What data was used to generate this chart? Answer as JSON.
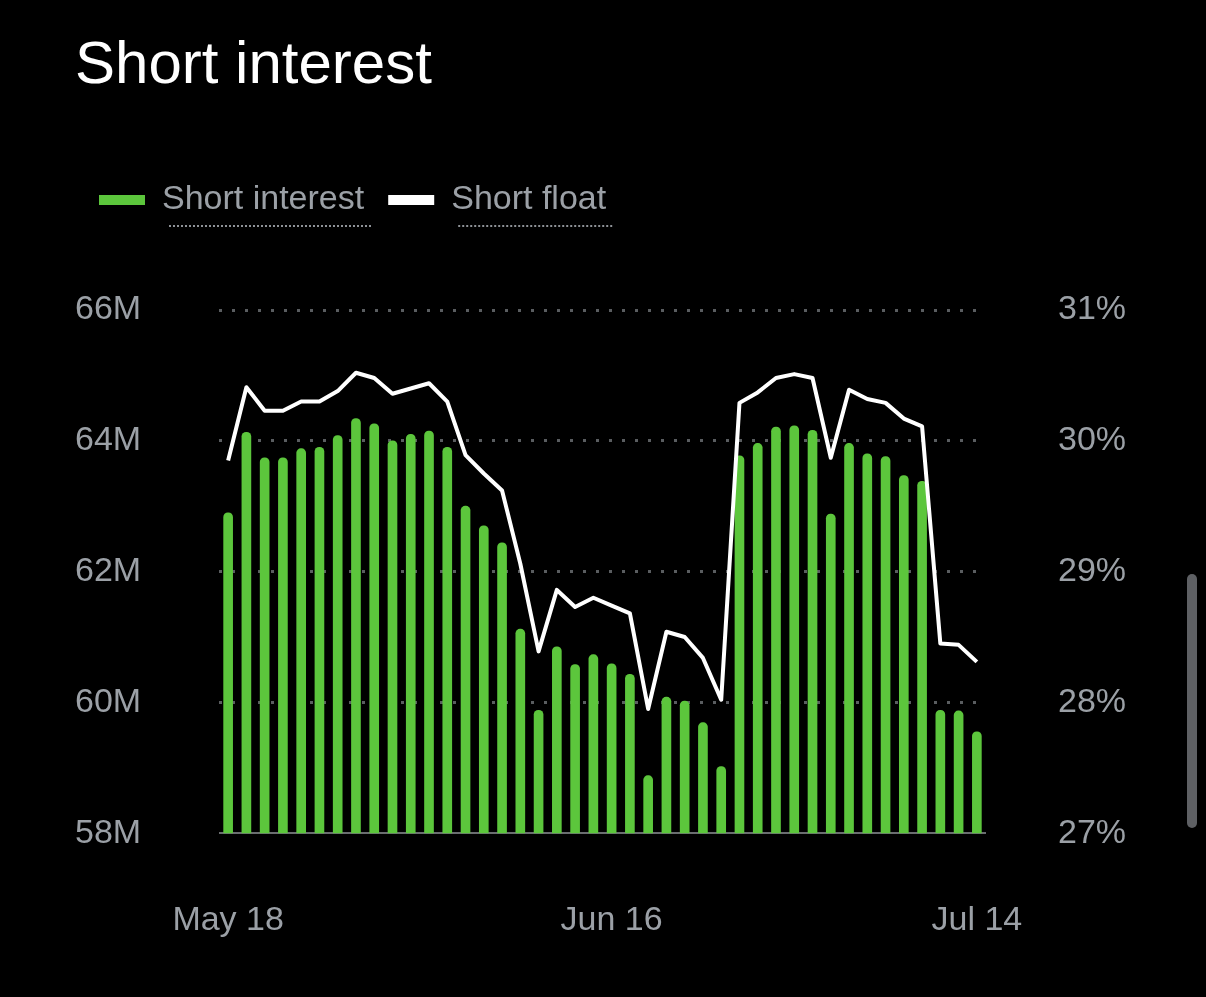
{
  "chart_data": {
    "type": "bar",
    "title": "Short interest",
    "categories": [
      "May 18",
      null,
      null,
      null,
      null,
      null,
      null,
      null,
      null,
      null,
      null,
      null,
      null,
      null,
      null,
      null,
      null,
      null,
      null,
      null,
      null,
      "Jun 16",
      null,
      null,
      null,
      null,
      null,
      null,
      null,
      null,
      null,
      null,
      null,
      null,
      null,
      null,
      null,
      null,
      null,
      null,
      null,
      "Jul 14"
    ],
    "series": [
      {
        "name": "Short interest",
        "type": "bar",
        "color": "#5cc63c",
        "values": [
          62.9,
          64.13,
          63.74,
          63.74,
          63.88,
          63.9,
          64.08,
          64.34,
          64.26,
          64.0,
          64.1,
          64.15,
          63.9,
          63.0,
          62.7,
          62.44,
          61.12,
          59.88,
          60.85,
          60.58,
          60.73,
          60.59,
          60.43,
          58.88,
          60.08,
          60.02,
          59.69,
          59.02,
          63.77,
          63.96,
          64.21,
          64.23,
          64.16,
          62.88,
          63.96,
          63.8,
          63.76,
          63.47,
          63.38,
          59.88,
          59.87,
          59.55
        ]
      },
      {
        "name": "Short float",
        "type": "line",
        "axis": "y2",
        "color": "#ffffff",
        "values": [
          29.85,
          30.41,
          30.23,
          30.23,
          30.3,
          30.3,
          30.38,
          30.52,
          30.48,
          30.36,
          30.4,
          30.44,
          30.3,
          29.89,
          29.75,
          29.62,
          29.06,
          28.39,
          28.86,
          28.73,
          28.8,
          28.74,
          28.68,
          27.95,
          28.54,
          28.5,
          28.34,
          28.02,
          30.29,
          30.37,
          30.48,
          30.51,
          30.48,
          29.87,
          30.39,
          30.32,
          30.29,
          30.17,
          30.11,
          28.45,
          28.44,
          28.31
        ]
      }
    ],
    "ylim": [
      58,
      66
    ],
    "yticks": [
      {
        "value": 58,
        "label": "58M"
      },
      {
        "value": 60,
        "label": "60M"
      },
      {
        "value": 62,
        "label": "62M"
      },
      {
        "value": 64,
        "label": "64M"
      },
      {
        "value": 66,
        "label": "66M"
      }
    ],
    "y2lim": [
      27,
      31
    ],
    "y2ticks": [
      {
        "value": 27,
        "label": "27%"
      },
      {
        "value": 28,
        "label": "28%"
      },
      {
        "value": 29,
        "label": "29%"
      },
      {
        "value": 30,
        "label": "30%"
      },
      {
        "value": 31,
        "label": "31%"
      }
    ],
    "grid": "y",
    "legend": "top left",
    "marker": "none",
    "line_style": "solid"
  }
}
